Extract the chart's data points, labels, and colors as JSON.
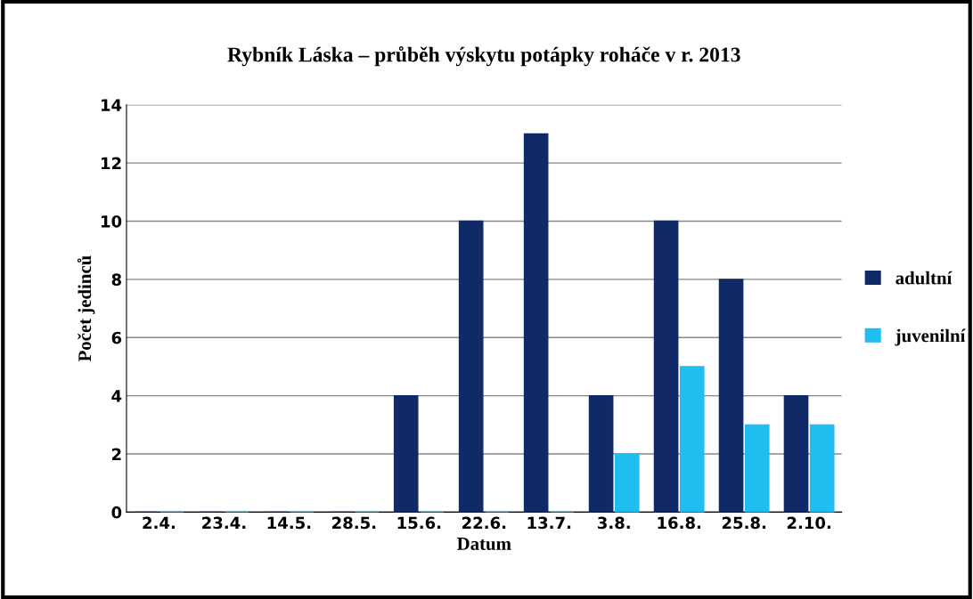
{
  "chart_data": {
    "type": "bar",
    "title": "Rybník Láska – průběh výskytu potápky roháče v r. 2013",
    "xlabel": "Datum",
    "ylabel": "Počet jedinců",
    "categories": [
      "2.4.",
      "23.4.",
      "14.5.",
      "28.5.",
      "15.6.",
      "22.6.",
      "13.7.",
      "3.8.",
      "16.8.",
      "25.8.",
      "2.10."
    ],
    "series": [
      {
        "name": "adultní",
        "color": "#0f2a66",
        "values": [
          0,
          0,
          0,
          0,
          4,
          10,
          13,
          4,
          10,
          8,
          4
        ]
      },
      {
        "name": "juvenilní",
        "color": "#1fbdf0",
        "values": [
          0,
          0,
          0,
          0,
          0,
          0,
          0,
          2,
          5,
          3,
          3
        ]
      }
    ],
    "ylim": [
      0,
      14
    ],
    "yticks": [
      0,
      2,
      4,
      6,
      8,
      10,
      12,
      14
    ],
    "grid": "y",
    "legend": "right"
  }
}
